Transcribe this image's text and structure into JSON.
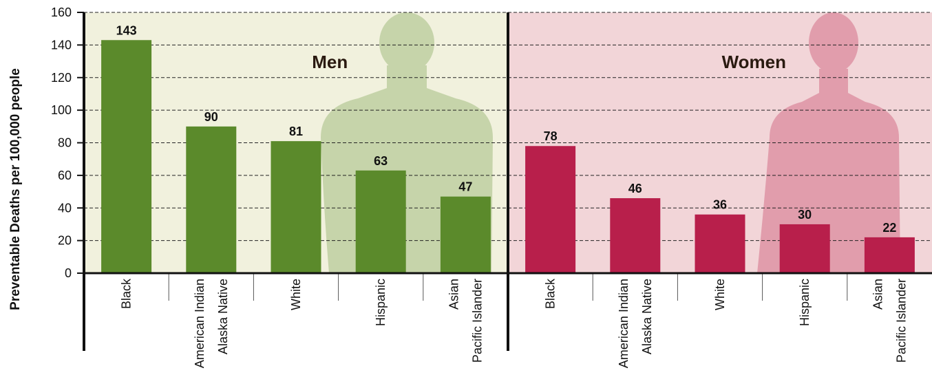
{
  "chart_data": {
    "type": "bar",
    "ylabel": "Preventable Deaths per 100,000 people",
    "ylim": [
      0,
      160
    ],
    "yticks": [
      0,
      20,
      40,
      60,
      80,
      100,
      120,
      140,
      160
    ],
    "grid": true,
    "panels": [
      {
        "title": "Men",
        "color": "#5b8a2b",
        "background": "#f1f1dd",
        "categories": [
          "Black",
          "American Indian\nAlaska Native",
          "White",
          "Hispanic",
          "Asian\nPacific Islander"
        ],
        "values": [
          143,
          90,
          81,
          63,
          47
        ]
      },
      {
        "title": "Women",
        "color": "#b81f4b",
        "background": "#f2d5d8",
        "categories": [
          "Black",
          "American Indian\nAlaska Native",
          "White",
          "Hispanic",
          "Asian\nPacific Islander"
        ],
        "values": [
          78,
          46,
          36,
          30,
          22
        ]
      }
    ]
  }
}
